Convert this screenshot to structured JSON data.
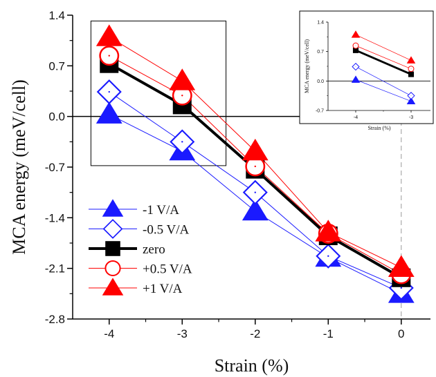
{
  "chart_data": [
    {
      "type": "line",
      "xlabel": "Strain (%)",
      "ylabel": "MCA energy (meV/cell)",
      "x": [
        -4,
        -3,
        -2,
        -1,
        0
      ],
      "xlim": [
        -4.5,
        0.4
      ],
      "ylim": [
        -2.8,
        1.4
      ],
      "xticks": [
        "-4",
        "-3",
        "-2",
        "-1",
        "0"
      ],
      "yticks": [
        "1.4",
        "0.7",
        "0.0",
        "-0.7",
        "-1.4",
        "-2.1",
        "-2.8"
      ],
      "legend_position": "lower-left",
      "reference_lines": {
        "horizontal_y": 0,
        "vertical_dashed_x": 0
      },
      "zoom_box": {
        "x_range": [
          -4.25,
          -2.4
        ],
        "y_range": [
          -0.68,
          1.32
        ]
      },
      "series": [
        {
          "name": "-1 V/A",
          "marker": "filled-triangle",
          "color": "#1a1aff",
          "values": [
            0.03,
            -0.48,
            -1.31,
            -1.95,
            -2.45
          ]
        },
        {
          "name": "-0.5 V/A",
          "marker": "open-diamond",
          "color": "#1a1aff",
          "values": [
            0.34,
            -0.35,
            -1.05,
            -1.93,
            -2.37
          ]
        },
        {
          "name": "zero",
          "marker": "filled-square",
          "color": "#000000",
          "values": [
            0.73,
            0.16,
            -0.73,
            -1.65,
            -2.23
          ]
        },
        {
          "name": "+0.5 V/A",
          "marker": "open-circle",
          "color": "#ff0000",
          "values": [
            0.84,
            0.29,
            -0.69,
            -1.62,
            -2.18
          ]
        },
        {
          "name": "+1 V/A",
          "marker": "filled-triangle",
          "color": "#ff0000",
          "values": [
            1.1,
            0.49,
            -0.48,
            -1.6,
            -2.09
          ]
        }
      ]
    },
    {
      "type": "line",
      "xlabel": "Strain (%)",
      "ylabel": "MCA energy (meV/cell)",
      "x": [
        -4,
        -3
      ],
      "xlim": [
        -4.5,
        -2.65
      ],
      "ylim": [
        -0.7,
        1.4
      ],
      "xticks": [
        "-4",
        "-3"
      ],
      "yticks": [
        "1.4",
        "0.7",
        "0.0",
        "-0.7"
      ],
      "series": [
        {
          "name": "-1 V/A",
          "marker": "filled-triangle",
          "color": "#1a1aff",
          "values": [
            0.03,
            -0.48
          ]
        },
        {
          "name": "-0.5 V/A",
          "marker": "open-diamond",
          "color": "#1a1aff",
          "values": [
            0.34,
            -0.35
          ]
        },
        {
          "name": "zero",
          "marker": "filled-square",
          "color": "#000000",
          "values": [
            0.73,
            0.16
          ]
        },
        {
          "name": "+0.5 V/A",
          "marker": "open-circle",
          "color": "#ff0000",
          "values": [
            0.84,
            0.29
          ]
        },
        {
          "name": "+1 V/A",
          "marker": "filled-triangle",
          "color": "#ff0000",
          "values": [
            1.1,
            0.49
          ]
        }
      ]
    }
  ]
}
